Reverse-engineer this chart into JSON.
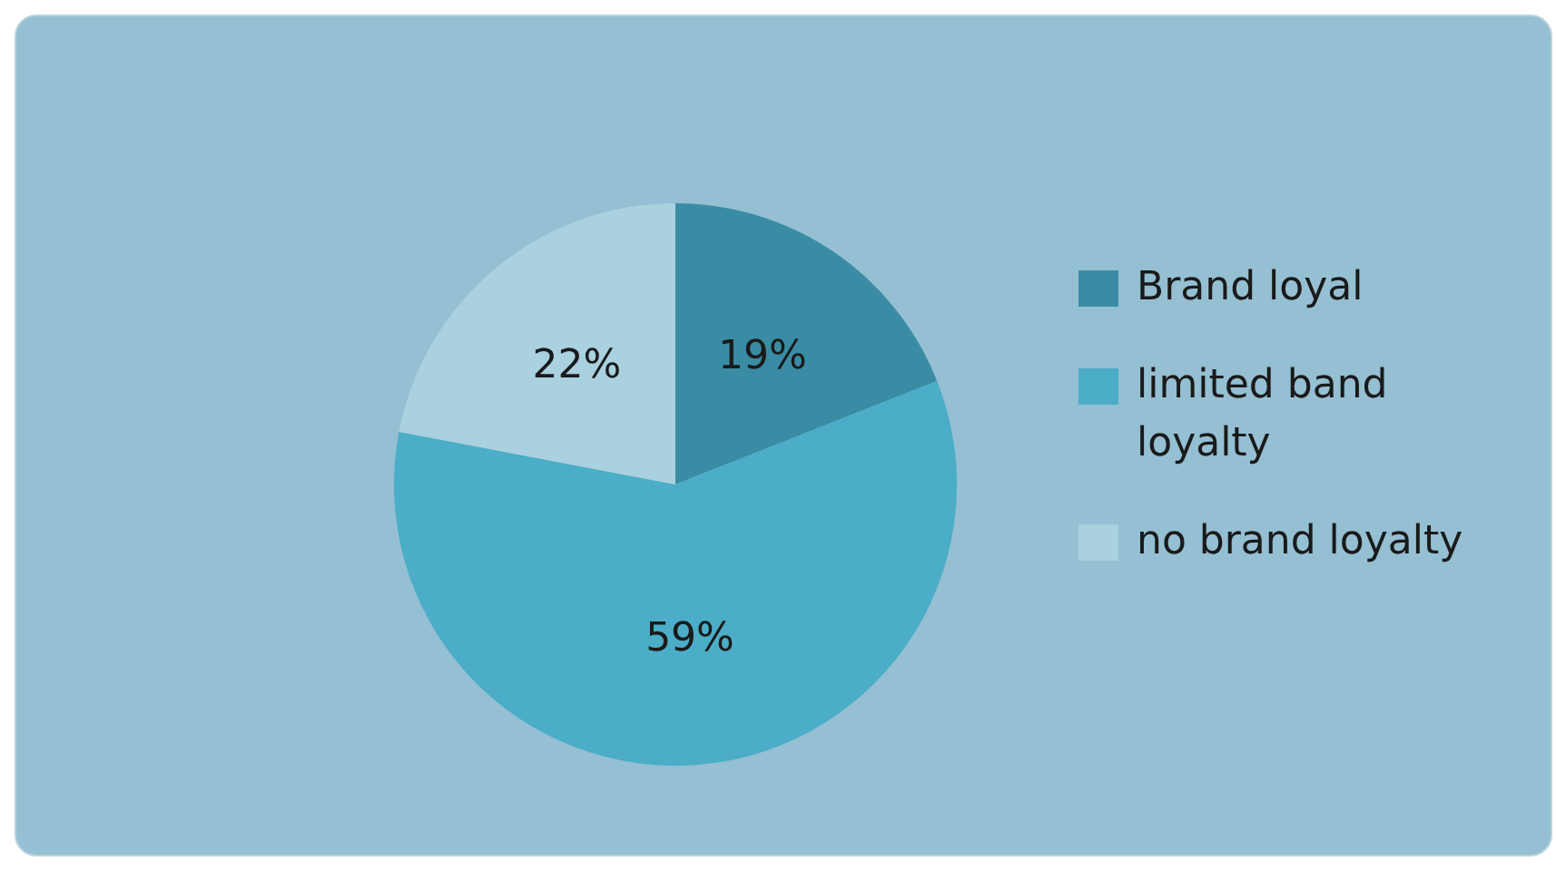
{
  "chart_data": {
    "type": "pie",
    "categories": [
      "Brand loyal",
      "limited band loyalty",
      "no brand loyalty"
    ],
    "values": [
      19,
      59,
      22
    ],
    "colors": [
      "#3a8ca4",
      "#4badc7",
      "#a9d1df"
    ],
    "value_labels": [
      "19%",
      "59%",
      "22%"
    ],
    "legend": "right"
  }
}
